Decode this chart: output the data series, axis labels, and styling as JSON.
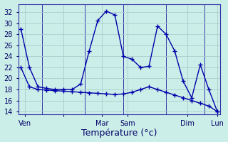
{
  "background_color": "#cceee8",
  "grid_color": "#aacccc",
  "line_color": "#0000aa",
  "ylim": [
    13.5,
    33.5
  ],
  "yticks": [
    14,
    16,
    18,
    20,
    22,
    24,
    26,
    28,
    30,
    32
  ],
  "xlabel": "Température (°c)",
  "xlabel_fontsize": 9,
  "tick_fontsize": 7,
  "lx1": [
    0,
    1,
    2,
    3,
    4,
    5,
    6,
    7,
    8,
    9,
    10,
    11,
    12,
    13,
    14,
    15,
    16,
    17,
    18,
    19,
    20,
    21,
    22,
    23
  ],
  "ly1": [
    29.0,
    22.0,
    18.5,
    18.2,
    18.0,
    18.0,
    18.0,
    19.0,
    25.0,
    30.5,
    32.2,
    31.5,
    24.0,
    23.5,
    22.0,
    22.2,
    29.5,
    28.0,
    25.0,
    19.5,
    16.5,
    22.5,
    18.0,
    14.0
  ],
  "lx2": [
    0,
    1,
    2,
    3,
    4,
    5,
    6,
    7,
    8,
    9,
    10,
    11,
    12,
    13,
    14,
    15,
    16,
    17,
    18,
    19,
    20,
    21,
    22,
    23
  ],
  "ly2": [
    22.0,
    18.5,
    18.0,
    17.9,
    17.8,
    17.7,
    17.6,
    17.5,
    17.4,
    17.3,
    17.2,
    17.1,
    17.2,
    17.5,
    18.0,
    18.5,
    18.0,
    17.5,
    17.0,
    16.5,
    16.0,
    15.5,
    15.0,
    14.0
  ],
  "vlines": [
    2.5,
    7.5,
    12.0,
    17.0,
    21.5
  ],
  "xtick_pos": [
    0.5,
    5.0,
    9.5,
    12.5,
    19.5,
    23.0
  ],
  "xtick_lab": [
    "Ven",
    "",
    "Mar",
    "Sam",
    "Dim",
    "Lun"
  ]
}
